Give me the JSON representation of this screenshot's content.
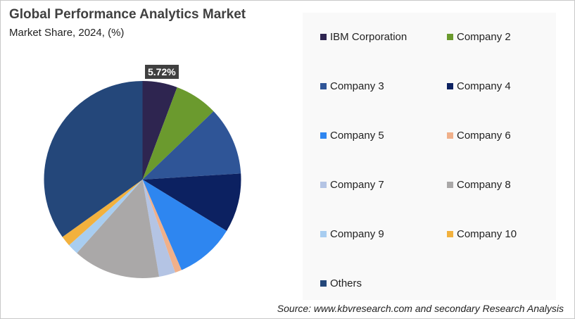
{
  "chart_data": {
    "type": "pie",
    "title": "Global Performance Analytics Market",
    "subtitle": "Market Share, 2024, (%)",
    "categories": [
      "IBM Corporation",
      "Company 2",
      "Company 3",
      "Company 4",
      "Company 5",
      "Company 6",
      "Company 7",
      "Company 8",
      "Company 9",
      "Company 10",
      "Others"
    ],
    "values": [
      5.72,
      7.1,
      11.2,
      9.7,
      9.8,
      1.1,
      2.7,
      14.3,
      1.8,
      1.7,
      34.9
    ],
    "colors": [
      "#2e2550",
      "#6b9a2e",
      "#2f5597",
      "#0c2161",
      "#2e86f0",
      "#f0b08a",
      "#b4c4e4",
      "#aaa8a8",
      "#a8cdf0",
      "#f2b13e",
      "#24477a"
    ],
    "data_labels": {
      "IBM Corporation": "5.72%"
    },
    "legend_placement": "right"
  },
  "source": "Source: www.kbvresearch.com and secondary Research Analysis"
}
